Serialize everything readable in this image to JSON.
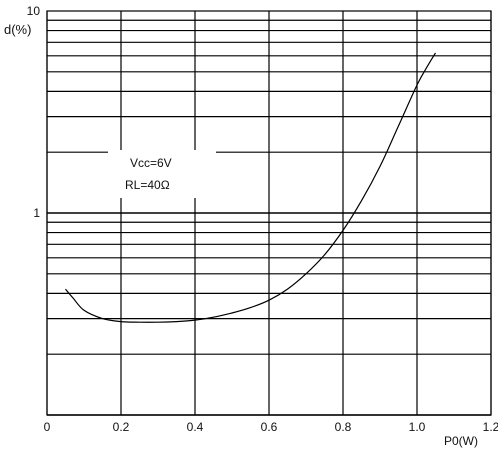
{
  "chart_data": {
    "type": "line",
    "ylabel": "d(%)",
    "xlabel": "P0(W)",
    "y_scale": "log",
    "xlim": [
      0,
      1.2
    ],
    "ylim": [
      0.1,
      10
    ],
    "grid": true,
    "x_ticks": [
      {
        "value": 0,
        "label": "0"
      },
      {
        "value": 0.2,
        "label": "0.2"
      },
      {
        "value": 0.4,
        "label": "0.4"
      },
      {
        "value": 0.6,
        "label": "0.6"
      },
      {
        "value": 0.8,
        "label": "0.8"
      },
      {
        "value": 1.0,
        "label": "1.0"
      },
      {
        "value": 1.2,
        "label": "1.2"
      }
    ],
    "y_ticks": [
      {
        "value": 1,
        "label": "1"
      },
      {
        "value": 10,
        "label": "10"
      }
    ],
    "annotations": [
      "Vcc=6V",
      "RL=40Ω"
    ],
    "series": [
      {
        "x": [
          0.05,
          0.07,
          0.1,
          0.15,
          0.2,
          0.25,
          0.3,
          0.35,
          0.4,
          0.45,
          0.5,
          0.55,
          0.6,
          0.65,
          0.7,
          0.75,
          0.8,
          0.85,
          0.9,
          0.95,
          1.0,
          1.03,
          1.05
        ],
        "y": [
          0.42,
          0.38,
          0.33,
          0.3,
          0.29,
          0.288,
          0.288,
          0.29,
          0.295,
          0.305,
          0.32,
          0.34,
          0.37,
          0.42,
          0.5,
          0.62,
          0.82,
          1.15,
          1.7,
          2.7,
          4.3,
          5.4,
          6.2
        ]
      }
    ]
  }
}
